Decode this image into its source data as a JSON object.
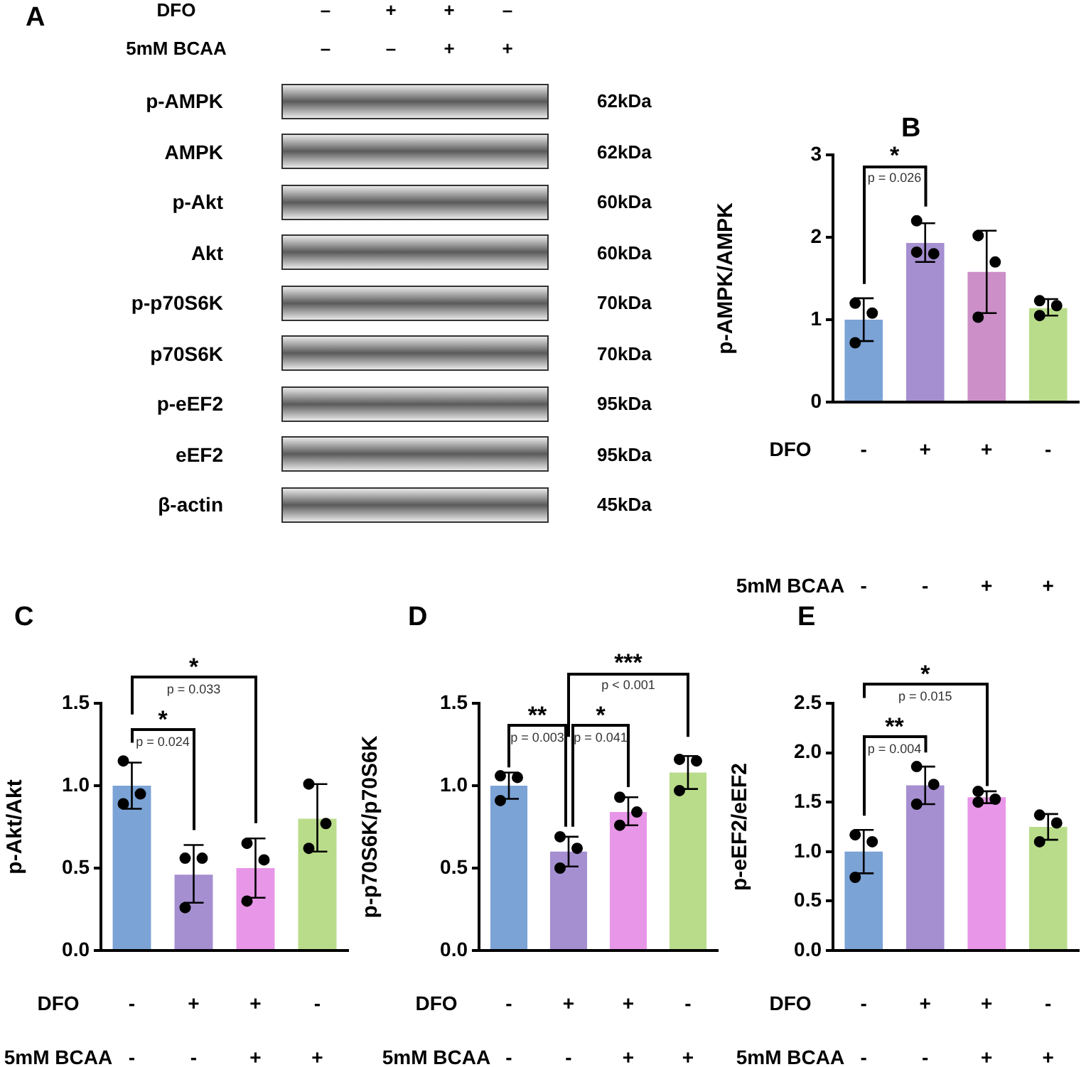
{
  "chart_data": [
    {
      "type": "other",
      "title": "A",
      "annotations": [
        "DFO",
        "–",
        "+",
        "+",
        "–",
        "5mM BCAA",
        "–",
        "–",
        "+",
        "+",
        "p-AMPK",
        "62kDa",
        "AMPK",
        "62kDa",
        "p-Akt",
        "60kDa",
        "Akt",
        "60kDa",
        "p-p70S6K",
        "70kDa",
        "p70S6K",
        "70kDa",
        "p-eEF2",
        "95kDa",
        "eEF2",
        "95kDa",
        "β-actin",
        "45kDa"
      ]
    },
    {
      "type": "bar",
      "title": "B",
      "ylabel": "p-AMPK/AMPK",
      "categories": [
        null,
        null,
        null,
        null
      ],
      "ylim": [
        0,
        3
      ],
      "yticks": [
        0,
        1,
        2,
        3
      ],
      "marker": "circle",
      "annotations": [
        "*",
        "p = 0.026",
        "DFO",
        "-",
        "+",
        "+",
        "-",
        "5mM BCAA",
        "-",
        "-",
        "+",
        "+"
      ],
      "series": [
        {
          "type": "bar",
          "colors": [
            "#7ba3d6",
            "#a58fd0",
            "#cc8fc8",
            "#b9dc8a"
          ],
          "values": [
            1.0,
            1.93,
            1.58,
            1.14
          ],
          "errors": [
            [
              0.74,
              1.26
            ],
            [
              1.7,
              2.17
            ],
            [
              1.08,
              2.08
            ],
            [
              1.05,
              1.25
            ]
          ]
        },
        {
          "type": "scatter",
          "color": "#000000",
          "values": [
            1.2,
            2.2,
            2.02,
            1.23
          ]
        },
        {
          "type": "scatter",
          "color": "#000000",
          "values": [
            1.08,
            1.8,
            1.7,
            1.17
          ]
        },
        {
          "type": "scatter",
          "color": "#000000",
          "values": [
            0.72,
            1.82,
            1.03,
            1.05
          ]
        }
      ]
    },
    {
      "type": "bar",
      "title": "C",
      "ylabel": "p-Akt/Akt",
      "categories": [
        null,
        null,
        null,
        null
      ],
      "ylim": [
        0,
        1.5
      ],
      "yticks": [
        {
          "value": 0,
          "label": "0.0"
        },
        {
          "value": 0.5,
          "label": "0.5"
        },
        {
          "value": 1,
          "label": "1.0"
        },
        {
          "value": 1.5,
          "label": "1.5"
        }
      ],
      "marker": "circle",
      "annotations": [
        "*",
        "p = 0.024",
        "*",
        "p = 0.033",
        "DFO",
        "-",
        "+",
        "+",
        "-",
        "5mM BCAA",
        "-",
        "-",
        "+",
        "+"
      ],
      "series": [
        {
          "type": "bar",
          "colors": [
            "#7ba3d6",
            "#a58fd0",
            "#e896e8",
            "#b9dc8a"
          ],
          "values": [
            1.0,
            0.46,
            0.5,
            0.8
          ],
          "errors": [
            [
              0.86,
              1.14
            ],
            [
              0.29,
              0.64
            ],
            [
              0.32,
              0.68
            ],
            [
              0.6,
              1.01
            ]
          ]
        },
        {
          "type": "scatter",
          "color": "#000000",
          "values": [
            1.15,
            0.56,
            0.65,
            1.01
          ]
        },
        {
          "type": "scatter",
          "color": "#000000",
          "values": [
            0.95,
            0.56,
            0.55,
            0.77
          ]
        },
        {
          "type": "scatter",
          "color": "#000000",
          "values": [
            0.89,
            0.26,
            0.3,
            0.62
          ]
        }
      ]
    },
    {
      "type": "bar",
      "title": "D",
      "ylabel": "p-p70S6K/p70S6K",
      "categories": [
        null,
        null,
        null,
        null
      ],
      "ylim": [
        0,
        1.5
      ],
      "yticks": [
        {
          "value": 0,
          "label": "0.0"
        },
        {
          "value": 0.5,
          "label": "0.5"
        },
        {
          "value": 1,
          "label": "1.0"
        },
        {
          "value": 1.5,
          "label": "1.5"
        }
      ],
      "marker": "circle",
      "annotations": [
        "**",
        "p = 0.003",
        "*",
        "p = 0.041",
        "***",
        "p < 0.001",
        "DFO",
        "-",
        "+",
        "+",
        "-",
        "5mM BCAA",
        "-",
        "-",
        "+",
        "+"
      ],
      "series": [
        {
          "type": "bar",
          "colors": [
            "#7ba3d6",
            "#a58fd0",
            "#e896e8",
            "#b9dc8a"
          ],
          "values": [
            1.0,
            0.6,
            0.84,
            1.08
          ],
          "errors": [
            [
              0.92,
              1.08
            ],
            [
              0.51,
              0.69
            ],
            [
              0.76,
              0.93
            ],
            [
              0.98,
              1.18
            ]
          ]
        },
        {
          "type": "scatter",
          "color": "#000000",
          "values": [
            1.06,
            0.69,
            0.93,
            1.16
          ]
        },
        {
          "type": "scatter",
          "color": "#000000",
          "values": [
            1.05,
            0.62,
            0.84,
            1.15
          ]
        },
        {
          "type": "scatter",
          "color": "#000000",
          "values": [
            0.91,
            0.5,
            0.76,
            0.97
          ]
        }
      ]
    },
    {
      "type": "bar",
      "title": "E",
      "ylabel": "p-eEF2/eEF2",
      "categories": [
        null,
        null,
        null,
        null
      ],
      "ylim": [
        0,
        2.5
      ],
      "yticks": [
        {
          "value": 0,
          "label": "0.0"
        },
        {
          "value": 0.5,
          "label": "0.5"
        },
        {
          "value": 1,
          "label": "1.0"
        },
        {
          "value": 1.5,
          "label": "1.5"
        },
        {
          "value": 2,
          "label": "2.0"
        },
        {
          "value": 2.5,
          "label": "2.5"
        }
      ],
      "marker": "circle",
      "annotations": [
        "**",
        "p = 0.004",
        "*",
        "p = 0.015",
        "DFO",
        "-",
        "+",
        "+",
        "-",
        "5mM BCAA",
        "-",
        "-",
        "+",
        "+"
      ],
      "series": [
        {
          "type": "bar",
          "colors": [
            "#7ba3d6",
            "#a58fd0",
            "#e896e8",
            "#b9dc8a"
          ],
          "values": [
            1.0,
            1.67,
            1.55,
            1.25
          ],
          "errors": [
            [
              0.78,
              1.22
            ],
            [
              1.48,
              1.86
            ],
            [
              1.49,
              1.61
            ],
            [
              1.12,
              1.38
            ]
          ]
        },
        {
          "type": "scatter",
          "color": "#000000",
          "values": [
            1.17,
            1.86,
            1.61,
            1.37
          ]
        },
        {
          "type": "scatter",
          "color": "#000000",
          "values": [
            1.1,
            1.68,
            1.53,
            1.29
          ]
        },
        {
          "type": "scatter",
          "color": "#000000",
          "values": [
            0.74,
            1.48,
            1.5,
            1.1
          ]
        }
      ]
    }
  ]
}
